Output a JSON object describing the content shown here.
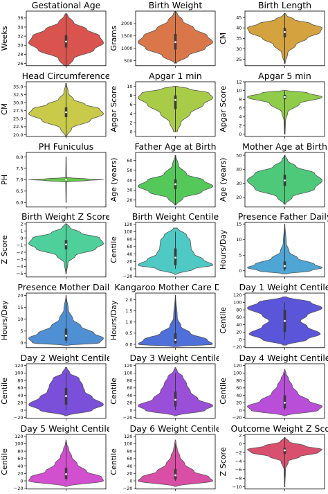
{
  "chart_data": [
    {
      "type": "violin",
      "title": "Gestational Age",
      "ylabel": "Weeks",
      "ylim": [
        25.5,
        37.5
      ],
      "yticks": [
        26,
        28,
        30,
        32,
        34,
        36
      ],
      "color": "#d9534f",
      "min": 25,
      "max": 37,
      "q1": 29.5,
      "median": 30.8,
      "q3": 32.2,
      "widths": [
        [
          25,
          0.02
        ],
        [
          27,
          0.2
        ],
        [
          29,
          0.75
        ],
        [
          30.5,
          1.0
        ],
        [
          32,
          0.9
        ],
        [
          33.5,
          0.55
        ],
        [
          35,
          0.2
        ],
        [
          36.5,
          0.05
        ],
        [
          37,
          0.01
        ]
      ]
    },
    {
      "type": "violin",
      "title": "Birth Weight",
      "ylabel": "Grams",
      "ylim": [
        300,
        2500
      ],
      "yticks": [
        500,
        1000,
        1500,
        2000
      ],
      "color": "#d9774b",
      "min": 400,
      "max": 2500,
      "q1": 950,
      "median": 1250,
      "q3": 1580,
      "widths": [
        [
          400,
          0.03
        ],
        [
          700,
          0.35
        ],
        [
          1000,
          0.8
        ],
        [
          1250,
          1.0
        ],
        [
          1500,
          0.85
        ],
        [
          1800,
          0.5
        ],
        [
          2100,
          0.2
        ],
        [
          2400,
          0.05
        ],
        [
          2500,
          0.01
        ]
      ]
    },
    {
      "type": "violin",
      "title": "Birth Length",
      "ylabel": "CM",
      "ylim": [
        22,
        48
      ],
      "yticks": [
        25,
        30,
        35,
        40,
        45
      ],
      "color": "#d4a23f",
      "min": 23,
      "max": 47,
      "q1": 35.5,
      "median": 38,
      "q3": 40,
      "widths": [
        [
          23,
          0.01
        ],
        [
          28,
          0.08
        ],
        [
          32,
          0.3
        ],
        [
          35,
          0.6
        ],
        [
          38,
          0.95
        ],
        [
          40,
          1.0
        ],
        [
          42,
          0.7
        ],
        [
          44,
          0.25
        ],
        [
          46,
          0.05
        ],
        [
          47,
          0.01
        ]
      ]
    },
    {
      "type": "violin",
      "title": "Head Circumference",
      "ylabel": "CM",
      "ylim": [
        19.5,
        36.5
      ],
      "yticks": [
        20.0,
        22.5,
        25.0,
        27.5,
        30.0,
        32.5,
        35.0
      ],
      "color": "#c9c94a",
      "min": 19.5,
      "max": 36,
      "q1": 25.5,
      "median": 27,
      "q3": 28.5,
      "widths": [
        [
          19.5,
          0.02
        ],
        [
          22,
          0.15
        ],
        [
          24.5,
          0.65
        ],
        [
          26.5,
          1.0
        ],
        [
          28,
          0.9
        ],
        [
          29.5,
          0.5
        ],
        [
          31,
          0.2
        ],
        [
          33,
          0.06
        ],
        [
          36,
          0.01
        ]
      ]
    },
    {
      "type": "violin",
      "title": "Apgar 1 min",
      "ylabel": "Apgar Score",
      "ylim": [
        -1,
        11
      ],
      "yticks": [
        0,
        2,
        4,
        6,
        8,
        10
      ],
      "color": "#a8cc48",
      "min": 0,
      "max": 10,
      "q1": 5,
      "median": 7,
      "q3": 8,
      "widths": [
        [
          0,
          0.05
        ],
        [
          2,
          0.15
        ],
        [
          4,
          0.4
        ],
        [
          6,
          0.75
        ],
        [
          7.5,
          1.0
        ],
        [
          8.5,
          0.9
        ],
        [
          9.5,
          0.35
        ],
        [
          10,
          0.05
        ]
      ]
    },
    {
      "type": "violin",
      "title": "Apgar 5 min",
      "ylabel": "Apgar Score",
      "ylim": [
        -0.5,
        12
      ],
      "yticks": [
        0,
        2,
        4,
        6,
        8,
        10,
        12
      ],
      "color": "#8fcc4a",
      "min": 0,
      "max": 10,
      "q1": 8,
      "median": 8.5,
      "q3": 9,
      "widths": [
        [
          0,
          0.01
        ],
        [
          3,
          0.02
        ],
        [
          5,
          0.08
        ],
        [
          7,
          0.4
        ],
        [
          8.5,
          1.0
        ],
        [
          9.5,
          0.6
        ],
        [
          10,
          0.05
        ]
      ]
    },
    {
      "type": "violin",
      "title": "PH Funiculus",
      "ylabel": "PH",
      "ylim": [
        5.8,
        8.2
      ],
      "yticks": [
        6.0,
        6.5,
        7.0,
        7.5,
        8.0
      ],
      "color": "#68c94a",
      "min": 6,
      "max": 8,
      "q1": 6.98,
      "median": 7.0,
      "q3": 7.02,
      "widths": [
        [
          6,
          0.005
        ],
        [
          6.9,
          0.01
        ],
        [
          6.97,
          0.6
        ],
        [
          7.0,
          1.0
        ],
        [
          7.03,
          0.6
        ],
        [
          7.1,
          0.01
        ],
        [
          8,
          0.005
        ]
      ]
    },
    {
      "type": "violin",
      "title": "Father Age at Birth",
      "ylabel": "Age (years)",
      "ylim": [
        13,
        68
      ],
      "yticks": [
        20,
        30,
        40,
        50,
        60
      ],
      "color": "#54c95a",
      "min": 15,
      "max": 65,
      "q1": 31,
      "median": 36,
      "q3": 41,
      "widths": [
        [
          15,
          0.02
        ],
        [
          22,
          0.2
        ],
        [
          28,
          0.7
        ],
        [
          34,
          1.0
        ],
        [
          40,
          0.75
        ],
        [
          46,
          0.3
        ],
        [
          55,
          0.08
        ],
        [
          65,
          0.01
        ]
      ]
    },
    {
      "type": "violin",
      "title": "Mother Age at Birth",
      "ylabel": "Age (years)",
      "ylim": [
        13,
        52
      ],
      "yticks": [
        20,
        30,
        40,
        50
      ],
      "color": "#4ec97a",
      "min": 15,
      "max": 50,
      "q1": 28,
      "median": 32,
      "q3": 36,
      "widths": [
        [
          15,
          0.02
        ],
        [
          20,
          0.2
        ],
        [
          26,
          0.8
        ],
        [
          32,
          1.0
        ],
        [
          37,
          0.8
        ],
        [
          42,
          0.3
        ],
        [
          46,
          0.08
        ],
        [
          50,
          0.01
        ]
      ]
    },
    {
      "type": "violin",
      "title": "Birth Weight Z Score",
      "ylabel": "Z Score",
      "ylim": [
        -5.5,
        2.2
      ],
      "yticks": [
        -5,
        -4,
        -3,
        -2,
        -1,
        0,
        1,
        2
      ],
      "color": "#4fcf9a",
      "min": -5,
      "max": 2,
      "q1": -1.6,
      "median": -0.9,
      "q3": -0.3,
      "widths": [
        [
          -5,
          0.01
        ],
        [
          -3.5,
          0.05
        ],
        [
          -2.5,
          0.25
        ],
        [
          -1.5,
          0.8
        ],
        [
          -0.8,
          1.0
        ],
        [
          0,
          0.9
        ],
        [
          0.7,
          0.4
        ],
        [
          1.5,
          0.1
        ],
        [
          2,
          0.02
        ]
      ]
    },
    {
      "type": "violin",
      "title": "Birth Weight Centile",
      "ylabel": "Centile",
      "ylim": [
        -22,
        125
      ],
      "yticks": [
        -20,
        0,
        20,
        40,
        60,
        80,
        100,
        120
      ],
      "color": "#4ec9c4",
      "min": 0,
      "max": 100,
      "q1": 10,
      "median": 30,
      "q3": 55,
      "widths": [
        [
          -15,
          0.02
        ],
        [
          0,
          0.5
        ],
        [
          10,
          1.0
        ],
        [
          25,
          0.75
        ],
        [
          40,
          0.5
        ],
        [
          55,
          0.42
        ],
        [
          75,
          0.4
        ],
        [
          90,
          0.3
        ],
        [
          110,
          0.05
        ]
      ]
    },
    {
      "type": "violin",
      "title": "Presence Father Daily",
      "ylabel": "Hours/Day",
      "ylim": [
        -2,
        15.5
      ],
      "yticks": [
        0,
        5,
        10,
        15
      ],
      "color": "#4fa6d4",
      "min": 0,
      "max": 15,
      "q1": 0.5,
      "median": 1.5,
      "q3": 3,
      "widths": [
        [
          -1,
          0.05
        ],
        [
          0,
          0.7
        ],
        [
          1,
          1.0
        ],
        [
          2,
          0.8
        ],
        [
          4,
          0.35
        ],
        [
          6,
          0.12
        ],
        [
          9,
          0.04
        ],
        [
          15,
          0.005
        ]
      ]
    },
    {
      "type": "violin",
      "title": "Presence Mother Daily",
      "ylabel": "Hours/Day",
      "ylim": [
        -2,
        21
      ],
      "yticks": [
        0,
        5,
        10,
        15,
        20
      ],
      "color": "#4f8fd4",
      "min": 0,
      "max": 20,
      "q1": 1,
      "median": 3,
      "q3": 6,
      "widths": [
        [
          -1,
          0.05
        ],
        [
          0,
          0.9
        ],
        [
          2,
          1.0
        ],
        [
          4,
          0.75
        ],
        [
          7,
          0.4
        ],
        [
          10,
          0.18
        ],
        [
          14,
          0.06
        ],
        [
          20,
          0.005
        ]
      ]
    },
    {
      "type": "violin",
      "title": "Kangaroo Mother Care Daily",
      "ylabel": "Hours/Day",
      "ylim": [
        -0.15,
        2.3
      ],
      "yticks": [
        0.0,
        0.5,
        1.0,
        1.5,
        2.0
      ],
      "color": "#4f6fd9",
      "min": 0,
      "max": 2.2,
      "q1": 0.05,
      "median": 0.2,
      "q3": 0.5,
      "widths": [
        [
          -0.1,
          0.05
        ],
        [
          0,
          1.0
        ],
        [
          0.2,
          0.85
        ],
        [
          0.5,
          0.4
        ],
        [
          0.8,
          0.15
        ],
        [
          1.2,
          0.05
        ],
        [
          2.2,
          0.005
        ]
      ]
    },
    {
      "type": "violin",
      "title": "Day 1 Weight Centile",
      "ylabel": "Centile",
      "ylim": [
        -22,
        125
      ],
      "yticks": [
        -20,
        0,
        20,
        40,
        60,
        80,
        100,
        120
      ],
      "color": "#5a55d9",
      "min": 0,
      "max": 100,
      "q1": 20,
      "median": 50,
      "q3": 80,
      "widths": [
        [
          -15,
          0.05
        ],
        [
          0,
          0.6
        ],
        [
          15,
          0.95
        ],
        [
          35,
          0.6
        ],
        [
          50,
          0.42
        ],
        [
          65,
          0.6
        ],
        [
          85,
          1.0
        ],
        [
          100,
          0.7
        ],
        [
          115,
          0.05
        ]
      ]
    },
    {
      "type": "violin",
      "title": "Day 2 Weight Centile",
      "ylabel": "Centile",
      "ylim": [
        -22,
        125
      ],
      "yticks": [
        -20,
        0,
        20,
        40,
        60,
        80,
        100,
        120
      ],
      "color": "#7a4fd9",
      "min": 0,
      "max": 100,
      "q1": 15,
      "median": 38,
      "q3": 60,
      "widths": [
        [
          -15,
          0.03
        ],
        [
          0,
          0.7
        ],
        [
          15,
          1.0
        ],
        [
          35,
          0.7
        ],
        [
          50,
          0.5
        ],
        [
          65,
          0.45
        ],
        [
          85,
          0.35
        ],
        [
          100,
          0.1
        ],
        [
          115,
          0.02
        ]
      ]
    },
    {
      "type": "violin",
      "title": "Day 3 Weight Centile",
      "ylabel": "Centile",
      "ylim": [
        -22,
        125
      ],
      "yticks": [
        -20,
        0,
        20,
        40,
        60,
        80,
        100,
        120
      ],
      "color": "#9a4fd9",
      "min": 0,
      "max": 100,
      "q1": 10,
      "median": 28,
      "q3": 50,
      "widths": [
        [
          -15,
          0.03
        ],
        [
          0,
          0.8
        ],
        [
          12,
          1.0
        ],
        [
          30,
          0.6
        ],
        [
          50,
          0.4
        ],
        [
          70,
          0.3
        ],
        [
          90,
          0.2
        ],
        [
          105,
          0.05
        ],
        [
          115,
          0.01
        ]
      ]
    },
    {
      "type": "violin",
      "title": "Day 4 Weight Centile",
      "ylabel": "Centile",
      "ylim": [
        -22,
        125
      ],
      "yticks": [
        -20,
        0,
        20,
        40,
        60,
        80,
        100,
        120
      ],
      "color": "#b94fd9",
      "min": 0,
      "max": 100,
      "q1": 5,
      "median": 20,
      "q3": 40,
      "widths": [
        [
          -15,
          0.03
        ],
        [
          0,
          0.9
        ],
        [
          10,
          1.0
        ],
        [
          25,
          0.65
        ],
        [
          45,
          0.35
        ],
        [
          65,
          0.2
        ],
        [
          85,
          0.1
        ],
        [
          100,
          0.03
        ],
        [
          110,
          0.005
        ]
      ]
    },
    {
      "type": "violin",
      "title": "Day 5 Weight Centile",
      "ylabel": "Centile",
      "ylim": [
        -22,
        125
      ],
      "yticks": [
        -20,
        0,
        20,
        40,
        60,
        80,
        100,
        120
      ],
      "color": "#d24fd0",
      "min": 0,
      "max": 100,
      "q1": 5,
      "median": 18,
      "q3": 35,
      "widths": [
        [
          -15,
          0.03
        ],
        [
          0,
          1.0
        ],
        [
          10,
          0.95
        ],
        [
          25,
          0.55
        ],
        [
          45,
          0.3
        ],
        [
          65,
          0.15
        ],
        [
          85,
          0.07
        ],
        [
          100,
          0.02
        ],
        [
          110,
          0.005
        ]
      ]
    },
    {
      "type": "violin",
      "title": "Day 6 Weight Centile",
      "ylabel": "Centile",
      "ylim": [
        -22,
        125
      ],
      "yticks": [
        -20,
        0,
        20,
        40,
        60,
        80,
        100,
        120
      ],
      "color": "#d94fa5",
      "min": 0,
      "max": 100,
      "q1": 4,
      "median": 15,
      "q3": 32,
      "widths": [
        [
          -15,
          0.03
        ],
        [
          0,
          1.0
        ],
        [
          10,
          0.9
        ],
        [
          25,
          0.5
        ],
        [
          45,
          0.25
        ],
        [
          65,
          0.12
        ],
        [
          85,
          0.05
        ],
        [
          100,
          0.02
        ],
        [
          110,
          0.005
        ]
      ]
    },
    {
      "type": "violin",
      "title": "Outcome Weight Z Score",
      "ylabel": "Z Score",
      "ylim": [
        -10.5,
        2.2
      ],
      "yticks": [
        -10,
        -8,
        -6,
        -4,
        -2,
        0,
        2
      ],
      "color": "#d9506e",
      "min": -10,
      "max": 1.5,
      "q1": -2.3,
      "median": -1.5,
      "q3": -0.9,
      "widths": [
        [
          -10,
          0.005
        ],
        [
          -6,
          0.02
        ],
        [
          -4,
          0.1
        ],
        [
          -3,
          0.4
        ],
        [
          -2,
          0.9
        ],
        [
          -1.3,
          1.0
        ],
        [
          -0.5,
          0.55
        ],
        [
          0.5,
          0.12
        ],
        [
          1.5,
          0.01
        ]
      ]
    }
  ]
}
